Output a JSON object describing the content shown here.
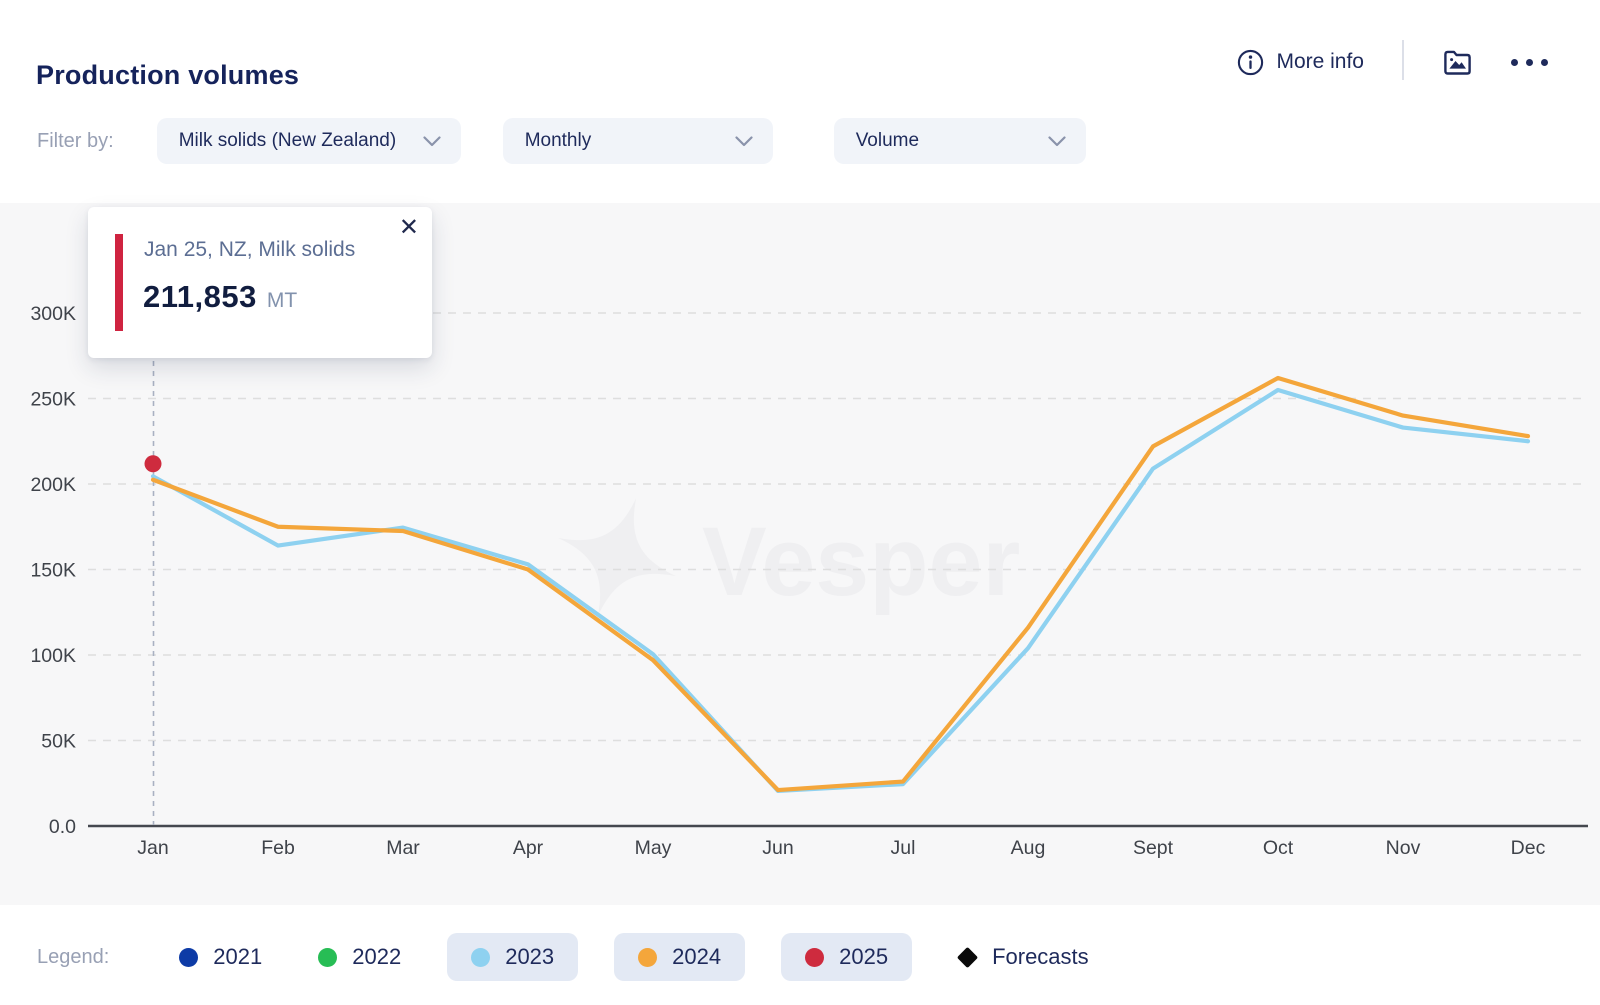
{
  "header": {
    "title": "Production volumes",
    "more_info_label": "More info"
  },
  "filters": {
    "label": "Filter by:",
    "dropdowns": [
      {
        "value": "Milk solids (New Zealand)"
      },
      {
        "value": "Monthly"
      },
      {
        "value": "Volume"
      }
    ]
  },
  "tooltip": {
    "title": "Jan 25, NZ, Milk solids",
    "value": "211,853",
    "unit": "MT",
    "accent_color": "#cf2340"
  },
  "watermark": "Vesper",
  "legend": {
    "label": "Legend:",
    "items": [
      {
        "label": "2021",
        "color": "#0d3ba6",
        "active": false,
        "shape": "circle"
      },
      {
        "label": "2022",
        "color": "#27bd55",
        "active": false,
        "shape": "circle"
      },
      {
        "label": "2023",
        "color": "#8ed1f0",
        "active": true,
        "shape": "circle"
      },
      {
        "label": "2024",
        "color": "#f4a63b",
        "active": true,
        "shape": "circle"
      },
      {
        "label": "2025",
        "color": "#ce2b3e",
        "active": true,
        "shape": "circle"
      },
      {
        "label": "Forecasts",
        "color": "#0a0a0a",
        "active": false,
        "shape": "diamond"
      }
    ]
  },
  "chart_data": {
    "type": "line",
    "title": "Production volumes",
    "unit": "MT",
    "x": [
      "Jan",
      "Feb",
      "Mar",
      "Apr",
      "May",
      "Jun",
      "Jul",
      "Aug",
      "Sept",
      "Oct",
      "Nov",
      "Dec"
    ],
    "y_ticks": [
      {
        "value": 0,
        "label": "0.0"
      },
      {
        "value": 50000,
        "label": "50K"
      },
      {
        "value": 100000,
        "label": "100K"
      },
      {
        "value": 150000,
        "label": "150K"
      },
      {
        "value": 200000,
        "label": "200K"
      },
      {
        "value": 250000,
        "label": "250K"
      },
      {
        "value": 300000,
        "label": "300K"
      }
    ],
    "ylim": [
      0,
      325000
    ],
    "grid": "dashed-horizontal",
    "legend_position": "bottom",
    "series": [
      {
        "name": "2023",
        "color": "#8ed1f0",
        "values": [
          204500,
          164000,
          174500,
          153000,
          100500,
          20500,
          24500,
          104000,
          209000,
          255000,
          233000,
          225000
        ]
      },
      {
        "name": "2024",
        "color": "#f4a63b",
        "values": [
          202500,
          175000,
          172500,
          150000,
          97000,
          21000,
          26000,
          116000,
          222000,
          262000,
          240000,
          228000
        ]
      },
      {
        "name": "2025",
        "color": "#ce2b3e",
        "point_only": true,
        "values": [
          211853
        ]
      }
    ],
    "highlight": {
      "series": "2025",
      "month": "Jan",
      "value": 211853,
      "value_label": "211,853",
      "unit": "MT"
    }
  }
}
